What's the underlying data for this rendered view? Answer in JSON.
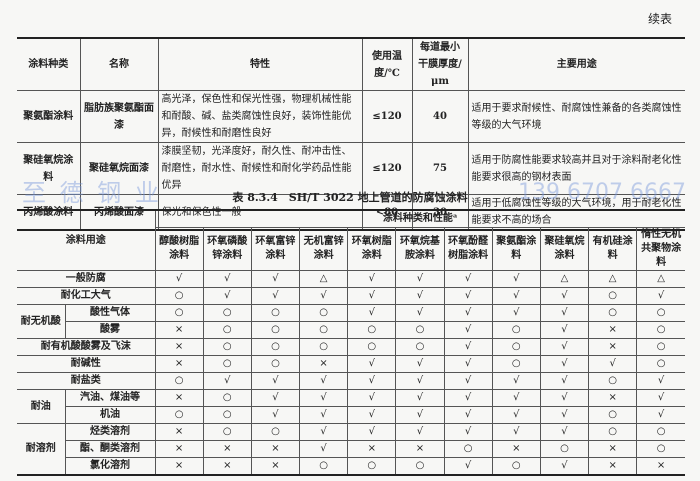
{
  "continued_label": "续表",
  "table1": {
    "headers": [
      "涂料种类",
      "名称",
      "特性",
      "使用温度/℃",
      "每道最小干膜厚度/μm",
      "主要用途"
    ],
    "rows": [
      [
        "聚氨酯涂料",
        "脂肪族聚氨酯面漆",
        "高光泽，保色性和保光性强，物理机械性能和耐酸、碱、盐类腐蚀性良好，装饰性能优异，耐候性和耐磨性良好",
        "≤120",
        "40",
        "适用于要求耐候性、耐腐蚀性兼备的各类腐蚀性等级的大气环境"
      ],
      [
        "聚硅氧烷涂料",
        "聚硅氧烷面漆",
        "漆膜坚韧，光泽度好，耐久性、耐冲击性、耐磨性，耐水性、耐候性和耐化学药品性能优异",
        "≤120",
        "75",
        "适用于防腐性能要求较高并且对于涂料耐老化性能要求很高的钢材表面"
      ],
      [
        "丙烯酸涂料",
        "丙烯酸面漆",
        "保光和保色性一般",
        "<80",
        "30",
        "适用于低腐蚀性等级的大气环境，用于耐老化性能要求不高的场合"
      ]
    ]
  },
  "table2": {
    "title": "表 8.3.4　SH/T 3022 地上管道的防腐蚀涂料",
    "use_header": "涂料用途",
    "group_header": "涂料种类和性能ᵃ",
    "columns": [
      "醇酸树脂涂料",
      "环氧磷酸锌涂料",
      "环氧富锌涂料",
      "无机富锌涂料",
      "环氧树脂涂料",
      "环氧烷基胺涂料",
      "环氧酚醛树脂涂料",
      "聚氨酯涂料",
      "聚硅氧烷涂料",
      "有机硅涂料",
      "惰性无机共聚物涂料"
    ],
    "rows": [
      {
        "group": "",
        "label": "一般防腐",
        "values": [
          "√",
          "√",
          "√",
          "△",
          "√",
          "√",
          "√",
          "√",
          "△",
          "△",
          "△"
        ]
      },
      {
        "group": "",
        "label": "耐化工大气",
        "values": [
          "○",
          "√",
          "√",
          "√",
          "√",
          "√",
          "√",
          "√",
          "√",
          "○",
          "√"
        ]
      },
      {
        "group": "耐无机酸",
        "span": 2,
        "label": "酸性气体",
        "values": [
          "○",
          "○",
          "○",
          "○",
          "√",
          "√",
          "√",
          "√",
          "√",
          "○",
          "○"
        ]
      },
      {
        "group": "耐无机酸",
        "label": "酸雾",
        "values": [
          "×",
          "○",
          "○",
          "○",
          "○",
          "○",
          "√",
          "○",
          "√",
          "×",
          "○"
        ]
      },
      {
        "group": "",
        "label": "耐有机酸酸雾及飞沫",
        "values": [
          "×",
          "○",
          "○",
          "○",
          "○",
          "○",
          "√",
          "○",
          "√",
          "×",
          "○"
        ]
      },
      {
        "group": "",
        "label": "耐碱性",
        "values": [
          "×",
          "○",
          "○",
          "×",
          "√",
          "√",
          "√",
          "○",
          "√",
          "√",
          "○"
        ]
      },
      {
        "group": "",
        "label": "耐盐类",
        "values": [
          "○",
          "√",
          "√",
          "√",
          "√",
          "√",
          "√",
          "√",
          "√",
          "○",
          "√"
        ]
      },
      {
        "group": "耐油",
        "span": 2,
        "label": "汽油、煤油等",
        "values": [
          "×",
          "○",
          "√",
          "√",
          "√",
          "√",
          "√",
          "√",
          "√",
          "×",
          "√"
        ]
      },
      {
        "group": "耐油",
        "label": "机油",
        "values": [
          "○",
          "○",
          "√",
          "√",
          "√",
          "√",
          "√",
          "√",
          "√",
          "○",
          "√"
        ]
      },
      {
        "group": "耐溶剂",
        "span": 3,
        "label": "烃类溶剂",
        "values": [
          "×",
          "○",
          "○",
          "√",
          "√",
          "√",
          "√",
          "√",
          "√",
          "○",
          "○"
        ]
      },
      {
        "group": "耐溶剂",
        "label": "酯、酮类溶剂",
        "values": [
          "×",
          "×",
          "×",
          "√",
          "×",
          "×",
          "○",
          "×",
          "○",
          "×",
          "○"
        ]
      },
      {
        "group": "耐溶剂",
        "label": "氯化溶剂",
        "values": [
          "×",
          "×",
          "×",
          "○",
          "○",
          "○",
          "√",
          "○",
          "√",
          "×",
          "×"
        ]
      }
    ]
  },
  "watermark": {
    "line1": "至 德 钢 业",
    "line2": "139 6707 6667"
  }
}
